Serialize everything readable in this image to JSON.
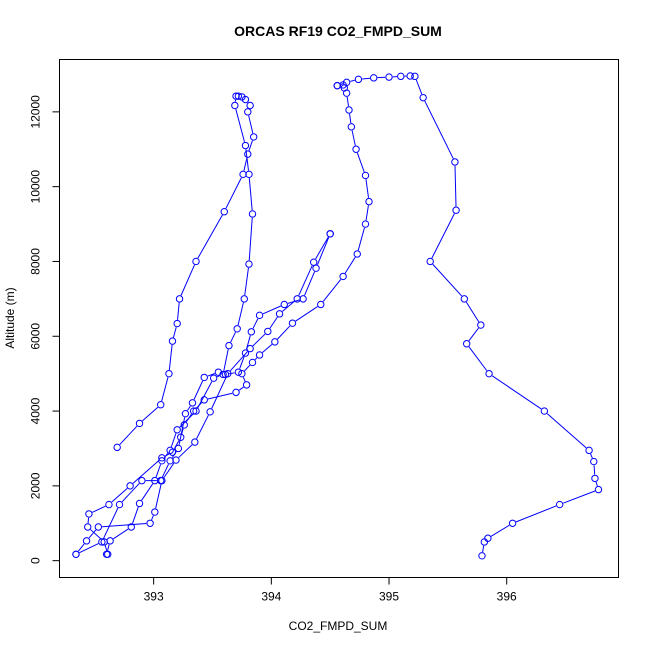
{
  "chart_data": {
    "type": "line",
    "title": "ORCAS RF19 CO2_FMPD_SUM",
    "xlabel": "CO2_FMPD_SUM",
    "ylabel": "Altitude (m)",
    "xlim": [
      392.2,
      396.95
    ],
    "ylim": [
      -450,
      13400
    ],
    "xticks": [
      393,
      394,
      395,
      396
    ],
    "yticks": [
      0,
      2000,
      4000,
      6000,
      8000,
      10000,
      12000
    ],
    "grid": false,
    "series_color": "#0000ff",
    "series": [
      {
        "x": [
          392.69,
          392.88,
          393.06,
          393.13,
          393.16,
          393.2,
          393.22,
          393.36,
          393.6,
          393.76,
          393.8,
          393.85,
          393.8,
          393.82,
          393.78,
          393.75,
          393.72
        ],
        "y": [
          3030,
          3670,
          4170,
          5000,
          5870,
          6340,
          7000,
          8000,
          9330,
          10330,
          10870,
          11330,
          12000,
          12170,
          12330,
          12400,
          12420
        ]
      },
      {
        "x": [
          393.7,
          393.69,
          393.78,
          393.81,
          393.84,
          393.81,
          393.77,
          393.71,
          393.64,
          393.59,
          393.51,
          393.36,
          393.2,
          393.14,
          393.07,
          393.01,
          392.88,
          392.81,
          392.63,
          392.6
        ],
        "y": [
          12420,
          12170,
          11100,
          10330,
          9270,
          7930,
          7000,
          6200,
          5750,
          4980,
          4880,
          4000,
          3500,
          2950,
          2670,
          2140,
          1530,
          900,
          530,
          170
        ]
      },
      {
        "x": [
          392.34,
          392.56,
          392.71,
          392.9,
          393.06,
          393.14,
          393.21,
          393.27,
          393.33,
          393.43,
          393.55,
          393.61,
          393.72,
          393.78,
          393.83,
          393.9,
          394.11,
          394.27,
          394.38,
          394.5
        ],
        "y": [
          170,
          500,
          1500,
          2140,
          2140,
          2670,
          3000,
          3930,
          4220,
          4900,
          5040,
          4980,
          5040,
          5550,
          6120,
          6560,
          6850,
          7000,
          7820,
          8740
        ]
      },
      {
        "x": [
          394.5,
          394.36,
          394.22,
          394.07,
          393.97,
          393.82,
          393.63,
          393.48,
          393.35,
          393.19,
          393.07,
          393.01,
          392.97,
          392.53,
          392.43,
          392.34
        ],
        "y": [
          8740,
          7980,
          7000,
          6600,
          6130,
          5670,
          5000,
          3980,
          3170,
          2690,
          2140,
          1300,
          1000,
          900,
          530,
          170
        ]
      },
      {
        "x": [
          392.61,
          392.58,
          392.44,
          392.45,
          392.62,
          392.8,
          393.07,
          393.16,
          393.23,
          393.26,
          393.34,
          393.43,
          393.7,
          393.79,
          393.75,
          393.84,
          393.9,
          394.03,
          394.18,
          394.42,
          394.61,
          394.73,
          394.8,
          394.83,
          394.8,
          394.72,
          394.68,
          394.66,
          394.64,
          394.62,
          394.61,
          394.56
        ],
        "y": [
          170,
          500,
          900,
          1250,
          1500,
          2000,
          2750,
          2900,
          3300,
          3630,
          4000,
          4300,
          4500,
          4700,
          5000,
          5300,
          5500,
          5850,
          6350,
          6850,
          7600,
          8200,
          9000,
          9600,
          10300,
          11000,
          11600,
          12050,
          12500,
          12640,
          12720,
          12700
        ]
      },
      {
        "x": [
          394.56,
          394.64,
          394.74,
          394.87,
          395.0,
          395.1,
          395.18,
          395.22,
          395.29,
          395.56,
          395.57,
          395.35,
          395.64,
          395.78,
          395.66,
          395.85,
          396.32,
          396.7,
          396.74,
          396.75,
          396.78,
          396.45,
          396.05,
          395.84,
          395.81,
          395.79
        ],
        "y": [
          12700,
          12790,
          12870,
          12910,
          12930,
          12950,
          12960,
          12950,
          12380,
          10660,
          9370,
          8000,
          7000,
          6300,
          5800,
          5000,
          4000,
          2950,
          2650,
          2200,
          1900,
          1500,
          1000,
          600,
          500,
          130
        ]
      }
    ]
  }
}
